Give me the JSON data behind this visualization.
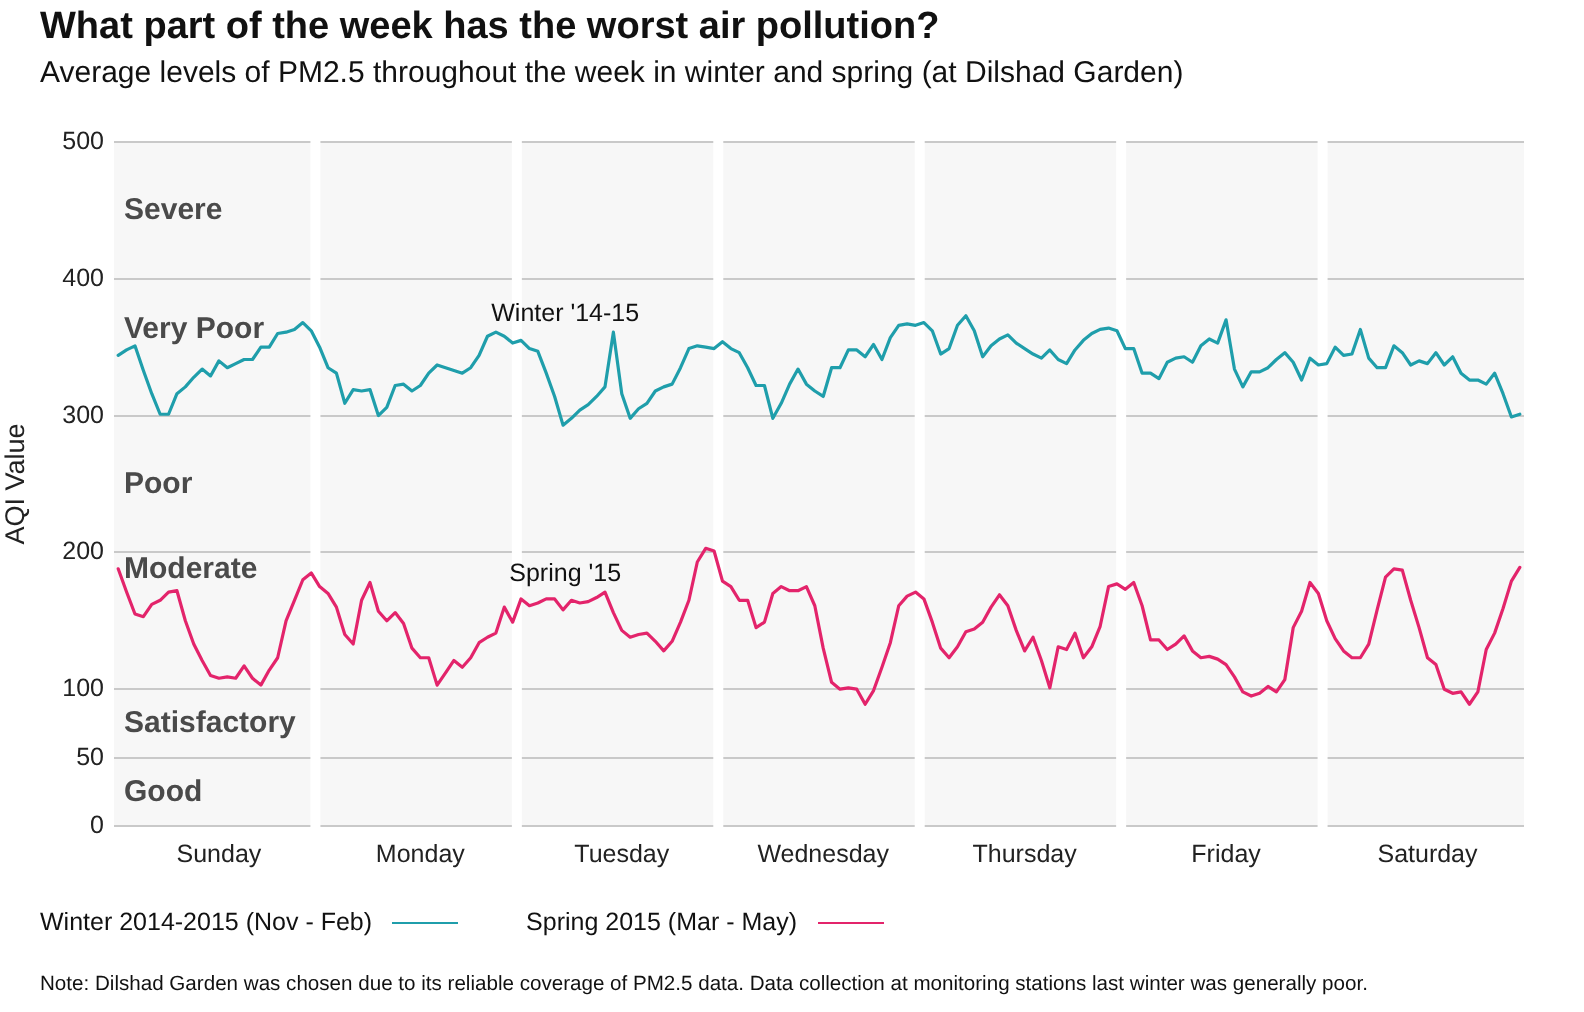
{
  "chart_data": {
    "type": "line",
    "title": "What part of the week has the worst air pollution?",
    "subtitle": "Average levels of PM2.5 throughout the week in winter and spring (at Dilshad Garden)",
    "ylabel": "AQI Value",
    "categories": [
      null,
      null,
      null,
      null,
      null,
      null,
      null,
      null,
      null,
      null,
      null,
      null,
      "Sunday",
      null,
      null,
      null,
      null,
      null,
      null,
      null,
      null,
      null,
      null,
      null,
      null,
      null,
      null,
      null,
      null,
      null,
      null,
      null,
      null,
      null,
      null,
      null,
      "Monday",
      null,
      null,
      null,
      null,
      null,
      null,
      null,
      null,
      null,
      null,
      null,
      null,
      null,
      null,
      null,
      null,
      null,
      null,
      null,
      null,
      null,
      null,
      null,
      "Tuesday",
      null,
      null,
      null,
      null,
      null,
      null,
      null,
      null,
      null,
      null,
      null,
      null,
      null,
      null,
      null,
      null,
      null,
      null,
      null,
      null,
      null,
      null,
      null,
      "Wednesday",
      null,
      null,
      null,
      null,
      null,
      null,
      null,
      null,
      null,
      null,
      null,
      null,
      null,
      null,
      null,
      null,
      null,
      null,
      null,
      null,
      null,
      null,
      null,
      "Thursday",
      null,
      null,
      null,
      null,
      null,
      null,
      null,
      null,
      null,
      null,
      null,
      null,
      null,
      null,
      null,
      null,
      null,
      null,
      null,
      null,
      null,
      null,
      null,
      "Friday",
      null,
      null,
      null,
      null,
      null,
      null,
      null,
      null,
      null,
      null,
      null,
      null,
      null,
      null,
      null,
      null,
      null,
      null,
      null,
      null,
      null,
      null,
      null,
      "Saturday",
      null,
      null,
      null,
      null,
      null,
      null,
      null,
      null,
      null,
      null,
      null
    ],
    "series": [
      {
        "name": "Winter 2014-2015 (Nov - Feb)",
        "color": "#1f9eab",
        "values": [
          344,
          348,
          351,
          333,
          316,
          301,
          301,
          316,
          321,
          328,
          334,
          329,
          340,
          335,
          338,
          341,
          341,
          350,
          350,
          360,
          361,
          363,
          368,
          362,
          350,
          335,
          331,
          309,
          319,
          318,
          319,
          300,
          306,
          322,
          323,
          318,
          322,
          331,
          337,
          335,
          333,
          331,
          335,
          344,
          358,
          361,
          358,
          353,
          355,
          349,
          347,
          331,
          314,
          293,
          298,
          304,
          308,
          314,
          321,
          361,
          316,
          298,
          305,
          309,
          318,
          321,
          323,
          335,
          349,
          351,
          350,
          349,
          354,
          349,
          346,
          335,
          322,
          322,
          298,
          309,
          323,
          334,
          323,
          318,
          314,
          335,
          335,
          348,
          348,
          343,
          352,
          341,
          357,
          366,
          367,
          366,
          368,
          362,
          345,
          349,
          366,
          373,
          362,
          343,
          351,
          356,
          359,
          353,
          349,
          345,
          342,
          348,
          341,
          338,
          348,
          355,
          360,
          363,
          364,
          362,
          349,
          349,
          331,
          331,
          327,
          339,
          342,
          343,
          339,
          351,
          356,
          353,
          370,
          334,
          321,
          332,
          332,
          335,
          341,
          346,
          339,
          326,
          342,
          337,
          338,
          350,
          344,
          345,
          363,
          342,
          335,
          335,
          351,
          346,
          337,
          340,
          338,
          346,
          337,
          343,
          331,
          326,
          326,
          323,
          331,
          316,
          299,
          301
        ]
      },
      {
        "name": "Spring 2015 (Mar - May)",
        "color": "#e3246b",
        "values": [
          188,
          171,
          155,
          153,
          162,
          165,
          171,
          172,
          150,
          133,
          121,
          110,
          108,
          109,
          108,
          117,
          108,
          103,
          114,
          123,
          150,
          165,
          180,
          185,
          175,
          170,
          160,
          140,
          133,
          165,
          178,
          157,
          150,
          156,
          148,
          130,
          123,
          123,
          103,
          112,
          121,
          116,
          123,
          134,
          138,
          141,
          160,
          149,
          166,
          161,
          163,
          166,
          166,
          158,
          165,
          163,
          164,
          167,
          171,
          156,
          143,
          138,
          140,
          141,
          135,
          128,
          135,
          149,
          165,
          193,
          203,
          201,
          179,
          175,
          165,
          165,
          145,
          149,
          170,
          175,
          172,
          172,
          175,
          161,
          130,
          105,
          100,
          101,
          100,
          89,
          99,
          116,
          134,
          161,
          168,
          171,
          166,
          149,
          130,
          123,
          131,
          142,
          144,
          149,
          160,
          169,
          161,
          143,
          128,
          138,
          121,
          101,
          131,
          129,
          141,
          123,
          131,
          146,
          175,
          177,
          173,
          178,
          161,
          136,
          136,
          129,
          133,
          139,
          128,
          123,
          124,
          122,
          118,
          109,
          98,
          95,
          97,
          102,
          98,
          107,
          145,
          157,
          178,
          170,
          150,
          137,
          128,
          123,
          123,
          133,
          158,
          182,
          188,
          187,
          165,
          145,
          123,
          118,
          100,
          97,
          98,
          89,
          98,
          129,
          141,
          159,
          179,
          189
        ]
      }
    ],
    "ylim": [
      0,
      500
    ],
    "yticks": [
      0,
      50,
      100,
      200,
      300,
      400,
      500
    ],
    "grid": "y",
    "legend": "bottom",
    "bands": [
      {
        "axis": "y",
        "from": 400,
        "to": 500,
        "label": "Severe",
        "color": "#f7f7f7"
      },
      {
        "axis": "y",
        "from": 300,
        "to": 400,
        "label": "Very Poor",
        "color": "#f7f7f7"
      },
      {
        "axis": "y",
        "from": 200,
        "to": 300,
        "label": "Poor",
        "color": "#f7f7f7"
      },
      {
        "axis": "y",
        "from": 100,
        "to": 200,
        "label": "Moderate",
        "color": "#f7f7f7"
      },
      {
        "axis": "y",
        "from": 50,
        "to": 100,
        "label": "Satisfactory",
        "color": "#f7f7f7"
      },
      {
        "axis": "y",
        "from": 0,
        "to": 50,
        "label": "Good",
        "color": "#f7f7f7"
      }
    ],
    "annotations": [
      "Winter '14-15",
      "Spring '15",
      "Note: Dilshad Garden was chosen due to its reliable coverage of PM2.5 data. Data collection at monitoring stations last winter was generally poor."
    ]
  }
}
